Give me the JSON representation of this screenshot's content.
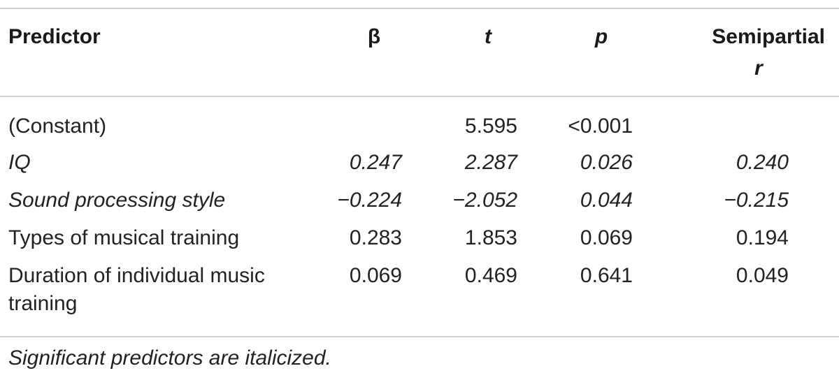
{
  "table": {
    "headers": {
      "predictor": "Predictor",
      "beta": "β",
      "t": "t",
      "p": "p",
      "semipartial_line1": "Semipartial",
      "semipartial_line2": "r"
    },
    "rows": [
      {
        "predictor": "(Constant)",
        "beta": "",
        "t": "5.595",
        "p": "<0.001",
        "semipartial": "",
        "italic": false
      },
      {
        "predictor": "IQ",
        "beta": "0.247",
        "t": "2.287",
        "p": "0.026",
        "semipartial": "0.240",
        "italic": true
      },
      {
        "predictor": "Sound processing style",
        "beta": "−0.224",
        "t": "−2.052",
        "p": "0.044",
        "semipartial": "−0.215",
        "italic": true
      },
      {
        "predictor": "Types of musical training",
        "beta": "0.283",
        "t": "1.853",
        "p": "0.069",
        "semipartial": "0.194",
        "italic": false
      },
      {
        "predictor": "Duration of individual music training",
        "beta": "0.069",
        "t": "0.469",
        "p": "0.641",
        "semipartial": "0.049",
        "italic": false
      }
    ],
    "footnote": "Significant predictors are italicized."
  }
}
